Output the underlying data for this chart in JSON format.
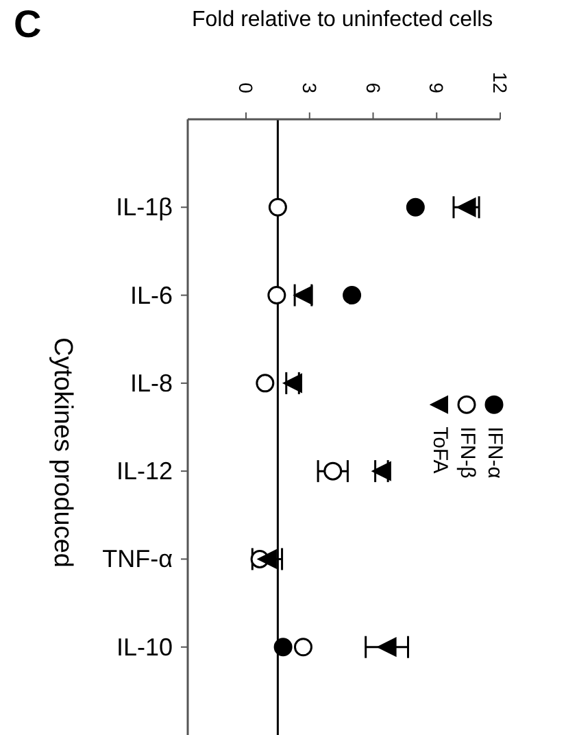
{
  "chart_data": {
    "type": "scatter",
    "xlabel": "Fold relative to uninfected cells",
    "ylabel": "Cytokines produced",
    "categories": [
      "IL-1β",
      "IL-6",
      "IL-8",
      "IL-12",
      "TNF-α",
      "IL-10"
    ],
    "orientation": "horizontal",
    "xlim": [
      -2.75,
      12
    ],
    "xticks": [
      0,
      3,
      6,
      9,
      12
    ],
    "series": [
      {
        "name": "IFN-α",
        "color": "#000000",
        "marker": "circle",
        "values": [
          8.0,
          5.0,
          null,
          null,
          null,
          1.75
        ]
      },
      {
        "name": "IFN-β",
        "color": "#ffffff",
        "marker": "circle",
        "values": [
          1.5,
          1.45,
          0.9,
          4.1,
          0.65,
          2.7
        ],
        "errors": [
          null,
          null,
          null,
          0.7,
          null,
          null
        ]
      },
      {
        "name": "ToFA",
        "color": "#000000",
        "marker": "triangle",
        "values": [
          10.4,
          2.7,
          2.2,
          6.4,
          1.0,
          6.65
        ],
        "errors": [
          0.6,
          0.4,
          0.3,
          0.3,
          0.7,
          1.0
        ]
      }
    ],
    "ref_lines": [
      {
        "axis": "x",
        "value": 1.5,
        "color": "#000000"
      }
    ],
    "legend": "right",
    "grid": false,
    "annotations": [
      "C"
    ]
  }
}
